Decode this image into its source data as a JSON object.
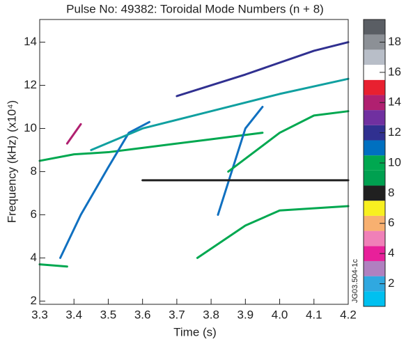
{
  "chart_data": {
    "type": "spectrogram",
    "title": "Pulse No: 49382: Toroidal Mode Numbers (n + 8)",
    "x_label": "Time (s)",
    "y_label": "Frequency (kHz) (x10⁴)",
    "side_label": "JG03.504-1c",
    "xlim": [
      3.3,
      4.2
    ],
    "xticks": [
      {
        "value": 3.3,
        "label": "3.3"
      },
      {
        "value": 3.4,
        "label": "3.4"
      },
      {
        "value": 3.5,
        "label": "3.5"
      },
      {
        "value": 3.6,
        "label": "3.6"
      },
      {
        "value": 3.7,
        "label": "3.7"
      },
      {
        "value": 3.8,
        "label": "3.8"
      },
      {
        "value": 3.9,
        "label": "3.9"
      },
      {
        "value": 4.0,
        "label": "4.0"
      },
      {
        "value": 4.1,
        "label": "4.1"
      },
      {
        "value": 4.2,
        "label": "4.2"
      }
    ],
    "ylim": [
      1.85,
      15.05
    ],
    "yticks": [
      2,
      4,
      6,
      8,
      10,
      12,
      14
    ],
    "series": [
      {
        "color": "#00a850",
        "x": [
          3.3,
          3.4,
          3.5,
          3.6,
          3.7,
          3.8,
          3.9,
          3.95
        ],
        "y": [
          8.5,
          8.8,
          8.9,
          9.1,
          9.3,
          9.5,
          9.7,
          9.8
        ]
      },
      {
        "color": "#1070c0",
        "x": [
          3.36,
          3.42,
          3.5,
          3.56,
          3.62
        ],
        "y": [
          4.0,
          6.0,
          8.2,
          9.8,
          10.3
        ]
      },
      {
        "color": "#1070c0",
        "x": [
          3.82,
          3.86,
          3.9,
          3.95
        ],
        "y": [
          6.0,
          8.0,
          10.0,
          11.0
        ]
      },
      {
        "color": "#10a0a0",
        "x": [
          3.45,
          3.6,
          3.8,
          4.0,
          4.2
        ],
        "y": [
          9.0,
          10.0,
          10.8,
          11.6,
          12.3
        ]
      },
      {
        "color": "#303090",
        "x": [
          3.7,
          3.9,
          4.1,
          4.2
        ],
        "y": [
          11.5,
          12.5,
          13.6,
          14.0
        ]
      },
      {
        "color": "#00a850",
        "x": [
          3.3,
          3.38
        ],
        "y": [
          3.7,
          3.6
        ]
      },
      {
        "color": "#202020",
        "x": [
          3.6,
          3.8,
          4.0,
          4.2
        ],
        "y": [
          7.6,
          7.6,
          7.6,
          7.6
        ]
      },
      {
        "color": "#00a850",
        "x": [
          3.76,
          3.9,
          4.0,
          4.2
        ],
        "y": [
          4.0,
          5.5,
          6.2,
          6.4
        ]
      },
      {
        "color": "#00a850",
        "x": [
          3.85,
          4.0,
          4.1,
          4.2
        ],
        "y": [
          8.0,
          9.8,
          10.6,
          10.8
        ]
      },
      {
        "color": "#b02070",
        "x": [
          3.38,
          3.42
        ],
        "y": [
          9.3,
          10.2
        ]
      }
    ],
    "colorbar": {
      "lim": [
        0.5,
        19.5
      ],
      "ticks": [
        2,
        4,
        6,
        8,
        10,
        12,
        14,
        16,
        18
      ],
      "colors": [
        "#00c0f0",
        "#30a8e0",
        "#b080c0",
        "#e8209a",
        "#f080b8",
        "#f8b070",
        "#f8f020",
        "#202020",
        "#00a050",
        "#00a850",
        "#0070c0",
        "#303090",
        "#7030a0",
        "#b02070",
        "#e82030",
        "#ffffff",
        "#b8bec8",
        "#8c9096",
        "#5a5e64"
      ]
    }
  }
}
